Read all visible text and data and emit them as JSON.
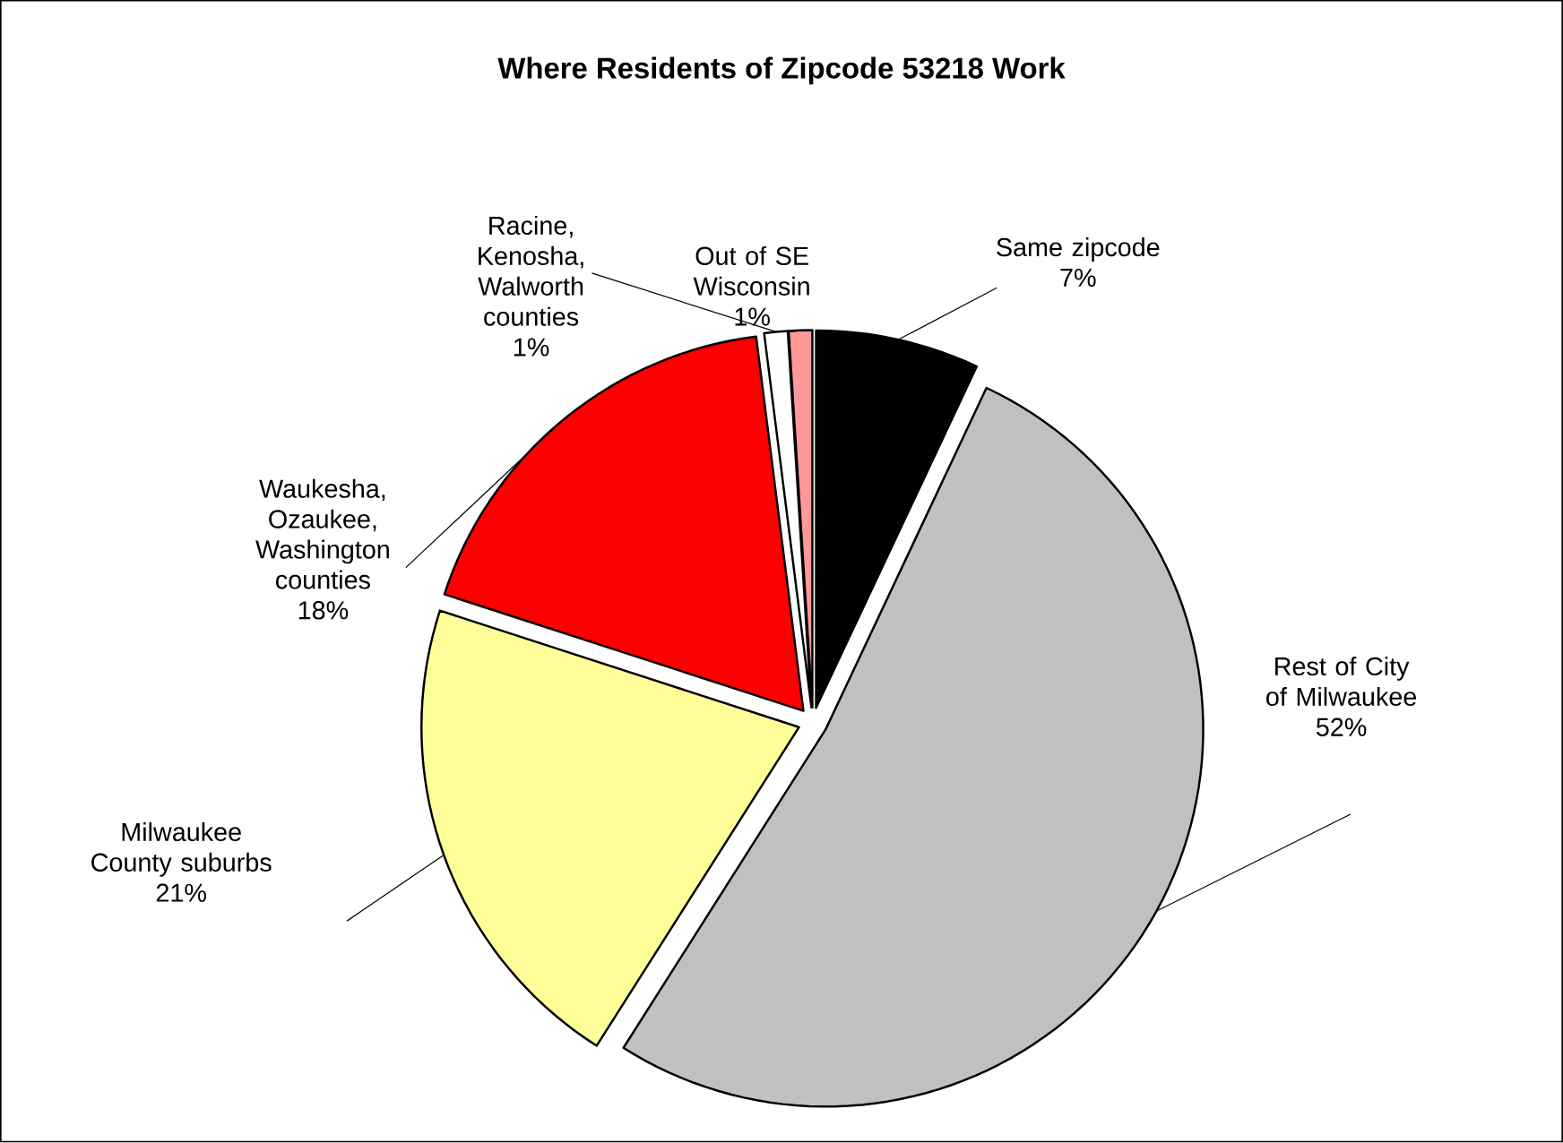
{
  "chart_data": {
    "type": "pie",
    "title": "Where Residents of Zipcode 53218 Work",
    "categories": [
      "Same zipcode",
      "Rest of City of Milwaukee",
      "Milwaukee County suburbs",
      "Waukesha, Ozaukee, Washington counties",
      "Racine, Kenosha, Walworth counties",
      "Out of SE Wisconsin"
    ],
    "values": [
      7,
      52,
      21,
      18,
      1,
      1
    ],
    "value_labels": [
      "7%",
      "52%",
      "21%",
      "18%",
      "1%",
      "1%"
    ],
    "colors": [
      "#000000",
      "#c0c0c0",
      "#ffff99",
      "#ff0000",
      "#ffffff",
      "#ff9999"
    ]
  }
}
